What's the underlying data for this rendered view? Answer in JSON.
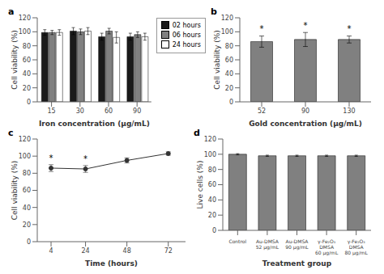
{
  "chart_data": [
    {
      "type": "bar",
      "title": "a",
      "categories": [
        15,
        30,
        60,
        90
      ],
      "series": [
        {
          "name": "02 hours",
          "color": "#1a1a1a",
          "values": [
            99,
            101,
            93,
            93
          ],
          "errors": [
            4,
            5,
            5,
            5
          ]
        },
        {
          "name": "06 hours",
          "color": "#808080",
          "values": [
            99,
            100,
            101,
            96
          ],
          "errors": [
            3,
            4,
            4,
            4
          ]
        },
        {
          "name": "24 hours",
          "color": "#ffffff",
          "values": [
            99,
            101,
            92,
            93
          ],
          "errors": [
            4,
            5,
            8,
            5
          ]
        }
      ],
      "xlabel": "Iron concentration (μg/mL)",
      "ylabel": "Cell viability (%)",
      "ylim": [
        0,
        120
      ],
      "yticks": [
        0,
        20,
        40,
        60,
        80,
        100,
        120
      ],
      "legend": "right"
    },
    {
      "type": "bar",
      "title": "b",
      "categories": [
        "52",
        "90",
        "130"
      ],
      "values": [
        86,
        89,
        89
      ],
      "errors": [
        8,
        10,
        5
      ],
      "stars": [
        "*",
        "*",
        "*"
      ],
      "color": "#808080",
      "xlabel": "Gold concentration (μg/mL)",
      "ylabel": "Cell viability (%)",
      "ylim": [
        0,
        120
      ],
      "yticks": [
        0,
        20,
        40,
        60,
        80,
        100,
        120
      ]
    },
    {
      "type": "line",
      "title": "c",
      "x": [
        4,
        24,
        48,
        72
      ],
      "values": [
        86,
        85,
        95,
        103
      ],
      "errors": [
        4,
        4,
        3,
        2
      ],
      "stars": [
        "*",
        "*",
        null,
        null
      ],
      "color": "#333333",
      "marker": "circle",
      "xlabel": "Time (hours)",
      "ylabel": "Cell viability (%)",
      "xlim": [
        -4,
        82
      ],
      "xticks": [
        4,
        24,
        48,
        72
      ],
      "ylim": [
        0,
        120
      ],
      "yticks": [
        0,
        20,
        40,
        60,
        80,
        100,
        120
      ]
    },
    {
      "type": "bar",
      "title": "d",
      "categories": [
        "Control",
        "Au-DMSA\n52 μg/mL",
        "Au-DMSA\n90 μg/mL",
        "γ-Fe₂O₃\nDMSA\n60 μg/mL",
        "γ-Fe₂O₃\nDMSA\n80 μg/mL"
      ],
      "values": [
        100,
        98,
        98,
        98,
        98
      ],
      "errors": [
        0.8,
        0.8,
        0.8,
        0.8,
        0.8
      ],
      "color": "#808080",
      "xlabel": "Treatment group",
      "ylabel": "Live cells (%)",
      "ylim": [
        0,
        120
      ],
      "yticks": [
        0,
        20,
        40,
        60,
        80,
        100,
        120
      ]
    }
  ]
}
